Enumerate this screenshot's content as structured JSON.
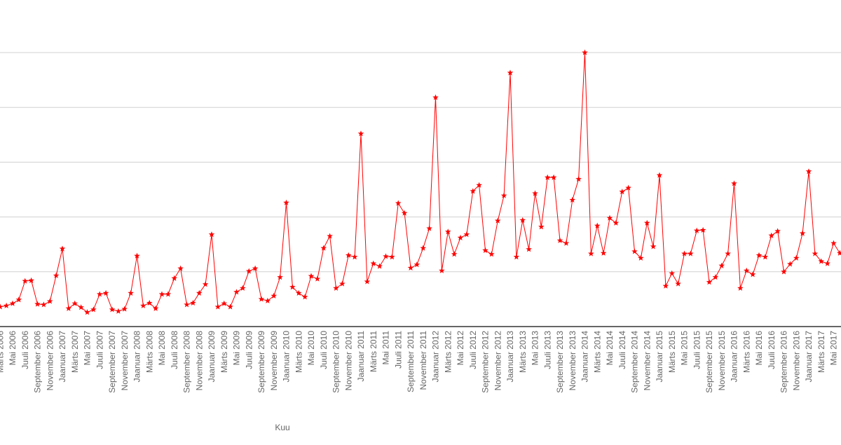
{
  "chart_data": {
    "type": "line",
    "x_label": "Kuu",
    "color": "#ff0000",
    "grid": true,
    "ylim": [
      0,
      5
    ],
    "yticks": [
      0,
      1,
      2,
      3,
      4,
      5
    ],
    "categories": [
      "Märts 2006",
      null,
      "Mai 2006",
      null,
      "Juuli 2006",
      null,
      "September 2006",
      null,
      "November 2006",
      null,
      "Jaanuar 2007",
      null,
      "Märts 2007",
      null,
      "Mai 2007",
      null,
      "Juuli 2007",
      null,
      "September 2007",
      null,
      "November 2007",
      null,
      "Jaanuar 2008",
      null,
      "Märts 2008",
      null,
      "Mai 2008",
      null,
      "Juuli 2008",
      null,
      "September 2008",
      null,
      "November 2008",
      null,
      "Jaanuar 2009",
      null,
      "Märts 2009",
      null,
      "Mai 2009",
      null,
      "Juuli 2009",
      null,
      "September 2009",
      null,
      "November 2009",
      null,
      "Jaanuar 2010",
      null,
      "Märts 2010",
      null,
      "Mai 2010",
      null,
      "Juuli 2010",
      null,
      "September 2010",
      null,
      "November 2010",
      null,
      "Jaanuar 2011",
      null,
      "Märts 2011",
      null,
      "Mai 2011",
      null,
      "Juuli 2011",
      null,
      "September 2011",
      null,
      "November 2011",
      null,
      "Jaanuar 2012",
      null,
      "Märts 2012",
      null,
      "Mai 2012",
      null,
      "Juuli 2012",
      null,
      "September 2012",
      null,
      "November 2012",
      null,
      "Jaanuar 2013",
      null,
      "Märts 2013",
      null,
      "Mai 2013",
      null,
      "Juuli 2013",
      null,
      "September 2013",
      null,
      "November 2013",
      null,
      "Jaanuar 2014",
      null,
      "Märts 2014",
      null,
      "Mai 2014",
      null,
      "Juuli 2014",
      null,
      "September 2014",
      null,
      "November 2014",
      null,
      "Jaanuar 2015",
      null,
      "Märts 2015",
      null,
      "Mai 2015",
      null,
      "Juuli 2015",
      null,
      "September 2015",
      null,
      "November 2015",
      null,
      "Jaanuar 2016",
      null,
      "Märts 2016",
      null,
      "Mai 2016",
      null,
      "Juuli 2016",
      null,
      "September 2016",
      null,
      "November 2016",
      null,
      "Jaanuar 2017",
      null,
      "Märts 2017",
      null,
      "Mai 2017",
      null
    ],
    "values": [
      0.36,
      0.38,
      0.42,
      0.49,
      0.83,
      0.84,
      0.41,
      0.4,
      0.46,
      0.93,
      1.42,
      0.33,
      0.42,
      0.35,
      0.26,
      0.31,
      0.59,
      0.61,
      0.31,
      0.28,
      0.32,
      0.61,
      1.29,
      0.38,
      0.43,
      0.33,
      0.59,
      0.59,
      0.88,
      1.06,
      0.4,
      0.43,
      0.61,
      0.77,
      1.68,
      0.36,
      0.42,
      0.36,
      0.63,
      0.7,
      1.01,
      1.06,
      0.5,
      0.47,
      0.56,
      0.9,
      2.26,
      0.72,
      0.61,
      0.54,
      0.92,
      0.87,
      1.43,
      1.65,
      0.7,
      0.78,
      1.3,
      1.27,
      3.52,
      0.82,
      1.15,
      1.1,
      1.28,
      1.27,
      2.25,
      2.07,
      1.07,
      1.13,
      1.43,
      1.79,
      4.18,
      1.02,
      1.73,
      1.32,
      1.62,
      1.68,
      2.47,
      2.58,
      1.39,
      1.32,
      1.93,
      2.39,
      4.63,
      1.27,
      1.94,
      1.41,
      2.43,
      1.82,
      2.72,
      2.72,
      1.57,
      1.52,
      2.31,
      2.69,
      5.0,
      1.33,
      1.84,
      1.34,
      1.98,
      1.89,
      2.46,
      2.53,
      1.37,
      1.25,
      1.89,
      1.46,
      2.76,
      0.74,
      0.97,
      0.78,
      1.33,
      1.33,
      1.75,
      1.76,
      0.81,
      0.9,
      1.11,
      1.33,
      2.61,
      0.7,
      1.02,
      0.95,
      1.3,
      1.27,
      1.66,
      1.74,
      1.0,
      1.14,
      1.25,
      1.7,
      2.83,
      1.33,
      1.19,
      1.15,
      1.52,
      1.34
    ]
  }
}
